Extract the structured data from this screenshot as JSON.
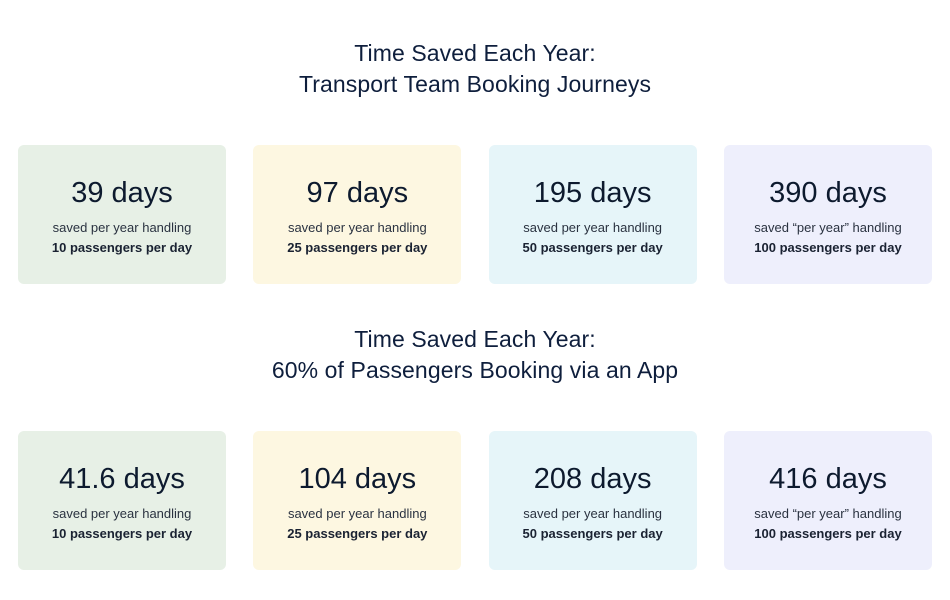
{
  "section_1": {
    "title_line_1": "Time Saved Each Year:",
    "title_line_2": "Transport Team Booking Journeys",
    "cards": [
      {
        "value": "39 days",
        "caption": "saved per year handling",
        "volume": "10 passengers per day",
        "color": "#e7f0e6"
      },
      {
        "value": "97 days",
        "caption": "saved per year handling",
        "volume": "25 passengers per day",
        "color": "#fdf7e1"
      },
      {
        "value": "195 days",
        "caption": "saved per year handling",
        "volume": "50 passengers per day",
        "color": "#e6f5f9"
      },
      {
        "value": "390 days",
        "caption": "saved “per year” handling",
        "volume": "100 passengers per day",
        "color": "#eeeffc"
      }
    ]
  },
  "section_2": {
    "title_line_1": "Time Saved Each Year:",
    "title_line_2": "60% of Passengers Booking via an App",
    "cards": [
      {
        "value": "41.6 days",
        "caption": "saved per year handling",
        "volume": "10 passengers per day",
        "color": "#e7f0e6"
      },
      {
        "value": "104 days",
        "caption": "saved per year handling",
        "volume": "25 passengers per day",
        "color": "#fdf7e1"
      },
      {
        "value": "208 days",
        "caption": "saved per year handling",
        "volume": "50 passengers per day",
        "color": "#e6f5f9"
      },
      {
        "value": "416 days",
        "caption": "saved “per year” handling",
        "volume": "100 passengers per day",
        "color": "#eeeffc"
      }
    ]
  }
}
